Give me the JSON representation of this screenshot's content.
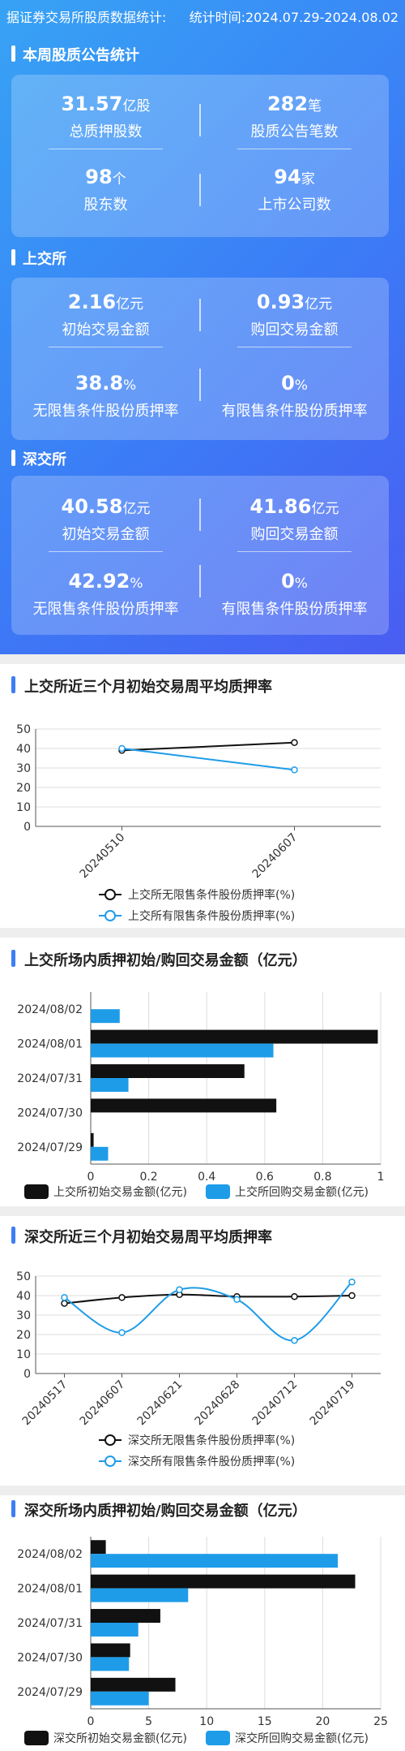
{
  "header": {
    "left": "据证券交易所股质数据统计:",
    "right": "统计时间:2024.07.29-2024.08.02"
  },
  "summary": {
    "title": "本周股质公告统计",
    "items": [
      {
        "value": "31.57",
        "unit": "亿股",
        "label": "总质押股数"
      },
      {
        "value": "282",
        "unit": "笔",
        "label": "股质公告笔数"
      },
      {
        "value": "98",
        "unit": "个",
        "label": "股东数"
      },
      {
        "value": "94",
        "unit": "家",
        "label": "上市公司数"
      }
    ]
  },
  "sse": {
    "title": "上交所",
    "items": [
      {
        "value": "2.16",
        "unit": "亿元",
        "label": "初始交易金额"
      },
      {
        "value": "0.93",
        "unit": "亿元",
        "label": "购回交易金额"
      },
      {
        "value": "38.8",
        "unit": "%",
        "label": "无限售条件股份质押率"
      },
      {
        "value": "0",
        "unit": "%",
        "label": "有限售条件股份质押率"
      }
    ]
  },
  "szse": {
    "title": "深交所",
    "items": [
      {
        "value": "40.58",
        "unit": "亿元",
        "label": "初始交易金额"
      },
      {
        "value": "41.86",
        "unit": "亿元",
        "label": "购回交易金额"
      },
      {
        "value": "42.92",
        "unit": "%",
        "label": "无限售条件股份质押率"
      },
      {
        "value": "0",
        "unit": "%",
        "label": "有限售条件股份质押率"
      }
    ]
  },
  "colors": {
    "black": "#111111",
    "blue": "#1e9ce8"
  },
  "chart_data": [
    {
      "type": "line",
      "title": "上交所近三个月初始交易周平均质押率",
      "categories": [
        "20240510",
        "20240607"
      ],
      "ylim": [
        0,
        50
      ],
      "yticks": [
        0,
        10,
        20,
        30,
        40,
        50
      ],
      "series": [
        {
          "name": "上交所无限售条件股份质押率(%)",
          "values": [
            39,
            43
          ],
          "color": "#111111",
          "smooth": false
        },
        {
          "name": "上交所有限售条件股份质押率(%)",
          "values": [
            40,
            29
          ],
          "color": "#1e9ce8",
          "smooth": false
        }
      ],
      "grid": true,
      "legend": "bottom"
    },
    {
      "type": "bar",
      "orientation": "horizontal",
      "title": "上交所场内质押初始/购回交易金额（亿元）",
      "categories": [
        "2024/08/02",
        "2024/08/01",
        "2024/07/31",
        "2024/07/30",
        "2024/07/29"
      ],
      "xlim": [
        0,
        1
      ],
      "xticks": [
        "0",
        "0.2",
        "0.4",
        "0.6",
        "0.8",
        "1"
      ],
      "series": [
        {
          "name": "上交所初始交易金额(亿元)",
          "values": [
            0,
            0.99,
            0.53,
            0.64,
            0.01
          ],
          "color": "#111111"
        },
        {
          "name": "上交所回购交易金额(亿元)",
          "values": [
            0.1,
            0.63,
            0.13,
            0,
            0.06
          ],
          "color": "#1e9ce8"
        }
      ],
      "grid": true,
      "legend": "bottom"
    },
    {
      "type": "line",
      "title": "深交所近三个月初始交易周平均质押率",
      "categories": [
        "20240517",
        "20240607",
        "20240621",
        "20240628",
        "20240712",
        "20240719"
      ],
      "ylim": [
        0,
        50
      ],
      "yticks": [
        0,
        10,
        20,
        30,
        40,
        50
      ],
      "series": [
        {
          "name": "深交所无限售条件股份质押率(%)",
          "values": [
            36,
            39,
            40.5,
            39.5,
            39.5,
            40
          ],
          "color": "#111111",
          "smooth": true
        },
        {
          "name": "深交所有限售条件股份质押率(%)",
          "values": [
            39,
            21,
            43,
            38,
            17,
            47
          ],
          "color": "#1e9ce8",
          "smooth": true
        }
      ],
      "grid": true,
      "legend": "bottom"
    },
    {
      "type": "bar",
      "orientation": "horizontal",
      "title": "深交所场内质押初始/购回交易金额（亿元）",
      "categories": [
        "2024/08/02",
        "2024/08/01",
        "2024/07/31",
        "2024/07/30",
        "2024/07/29"
      ],
      "xlim": [
        0,
        25
      ],
      "xticks": [
        "0",
        "5",
        "10",
        "15",
        "20",
        "25"
      ],
      "series": [
        {
          "name": "深交所初始交易金额(亿元)",
          "values": [
            1.3,
            22.8,
            6,
            3.4,
            7.3
          ],
          "color": "#111111"
        },
        {
          "name": "深交所回购交易金额(亿元)",
          "values": [
            21.3,
            8.4,
            4.1,
            3.3,
            5
          ],
          "color": "#1e9ce8"
        }
      ],
      "grid": true,
      "legend": "bottom"
    }
  ]
}
